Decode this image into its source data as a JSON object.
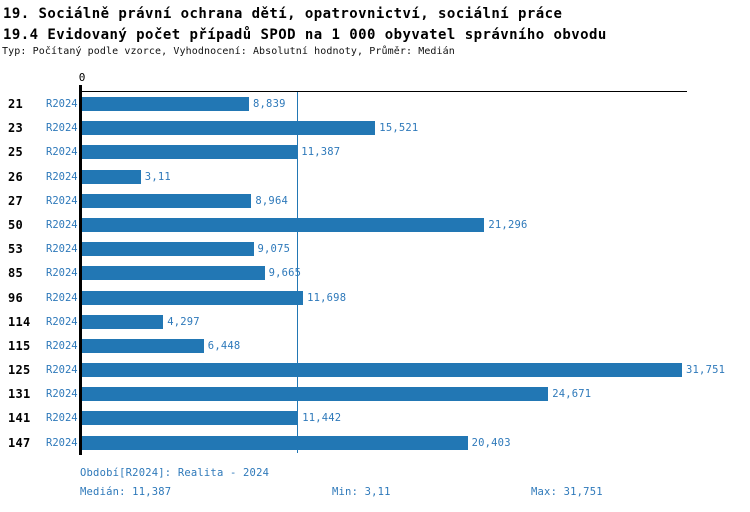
{
  "header": {
    "line1": "19. Sociálně právní ochrana dětí, opatrovnictví, sociální práce",
    "line2": "19.4 Evidovaný počet případů SPOD na 1 000 obyvatel správního obvodu",
    "meta": "Typ: Počítaný podle vzorce, Vyhodnocení: Absolutní hodnoty, Průměr: Medián"
  },
  "chart_data": {
    "type": "bar",
    "orientation": "horizontal",
    "axis_origin_label": "0",
    "categories": [
      "21",
      "23",
      "25",
      "26",
      "27",
      "50",
      "53",
      "85",
      "96",
      "114",
      "115",
      "125",
      "131",
      "141",
      "147"
    ],
    "series_label": "R2024",
    "values": [
      8.839,
      15.521,
      11.387,
      3.11,
      8.964,
      21.296,
      9.075,
      9.665,
      11.698,
      4.297,
      6.448,
      31.751,
      24.671,
      11.442,
      20.403
    ],
    "value_labels": [
      "8,839",
      "15,521",
      "11,387",
      "3,11",
      "8,964",
      "21,296",
      "9,075",
      "9,665",
      "11,698",
      "4,297",
      "6,448",
      "31,751",
      "24,671",
      "11,442",
      "20,403"
    ],
    "xlim": [
      0,
      31.751
    ],
    "median_value": 11.387,
    "grid": "median-line-only",
    "legend_position": "none",
    "bar_color": "#2277b4",
    "label_color": "#2e79ba"
  },
  "footer": {
    "period": "Období[R2024]: Realita - 2024",
    "median": "Medián: 11,387",
    "min": "Min: 3,11",
    "max": "Max: 31,751"
  }
}
